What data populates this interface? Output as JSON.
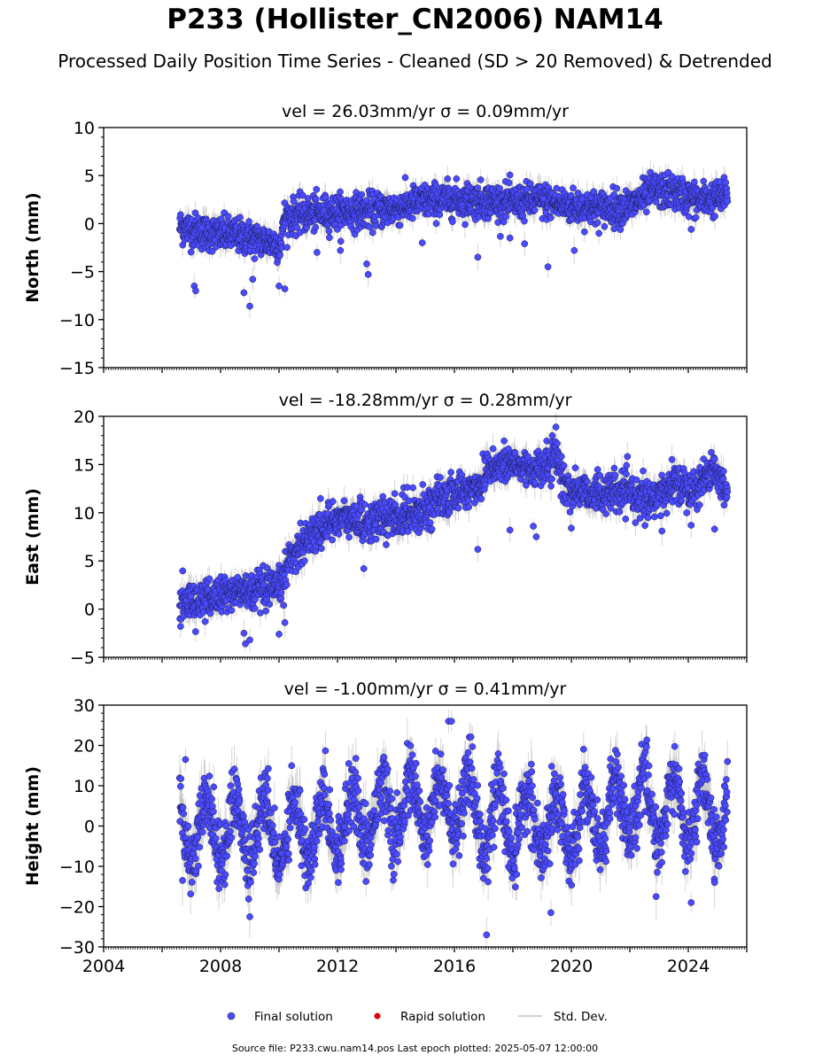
{
  "title": "P233 (Hollister_CN2006) NAM14",
  "subtitle": "Processed Daily Position Time Series - Cleaned (SD > 20 Removed) & Detrended",
  "footer": "Source file: P233.cwu.nam14.pos  Last epoch plotted: 2025-05-07 12:00:00",
  "colors": {
    "final": "#4a4aff",
    "final_edge": "#1a1a4a",
    "rapid": "#e00000",
    "stddev": "#b4b4b4"
  },
  "legend": [
    {
      "label": "Final solution",
      "marker": "dot-blue"
    },
    {
      "label": "Rapid solution",
      "marker": "dot-red"
    },
    {
      "label": "Std. Dev.",
      "marker": "line-gray"
    }
  ],
  "chart_data": [
    {
      "type": "scatter",
      "name": "north",
      "title": "vel = 26.03mm/yr   σ = 0.09mm/yr",
      "ylabel": "North (mm)",
      "xlim": [
        2004,
        2026
      ],
      "ylim": [
        -15,
        10
      ],
      "yticks": [
        10,
        5,
        0,
        -5,
        -10,
        -15
      ],
      "xticks": [],
      "x_range": [
        2006.6,
        2025.35
      ],
      "trend": [
        [
          2006.6,
          -0.3
        ],
        [
          2007.5,
          -1.0
        ],
        [
          2008.5,
          -1.2
        ],
        [
          2009.5,
          -1.8
        ],
        [
          2010.1,
          -2.2
        ],
        [
          2010.15,
          0.6
        ],
        [
          2011,
          1.0
        ],
        [
          2012,
          1.2
        ],
        [
          2013,
          1.3
        ],
        [
          2014,
          1.6
        ],
        [
          2014.9,
          2.3
        ],
        [
          2016,
          2.5
        ],
        [
          2017,
          2.4
        ],
        [
          2018,
          2.2
        ],
        [
          2019,
          2.4
        ],
        [
          2020,
          1.8
        ],
        [
          2021,
          1.6
        ],
        [
          2022,
          1.8
        ],
        [
          2022.8,
          3.4
        ],
        [
          2023.5,
          3.3
        ],
        [
          2024.3,
          2.4
        ],
        [
          2025.35,
          2.8
        ]
      ],
      "scatter_sd": 0.9,
      "outliers": [
        [
          2007.1,
          -6.5
        ],
        [
          2007.15,
          -7.0
        ],
        [
          2008.8,
          -7.2
        ],
        [
          2009.0,
          -8.6
        ],
        [
          2009.1,
          -5.8
        ],
        [
          2010.0,
          -6.5
        ],
        [
          2010.2,
          -6.8
        ],
        [
          2011.3,
          -3.0
        ],
        [
          2012.1,
          -2.8
        ],
        [
          2013.0,
          -4.2
        ],
        [
          2013.05,
          -5.3
        ],
        [
          2014.9,
          -2.0
        ],
        [
          2016.8,
          -3.5
        ],
        [
          2017.9,
          -1.5
        ],
        [
          2018.4,
          -2.1
        ],
        [
          2019.2,
          -4.5
        ],
        [
          2020.1,
          -2.8
        ],
        [
          2020.9,
          0.1
        ],
        [
          2024.1,
          -0.6
        ]
      ]
    },
    {
      "type": "scatter",
      "name": "east",
      "title": "vel = -18.28mm/yr   σ = 0.28mm/yr",
      "ylabel": "East (mm)",
      "xlim": [
        2004,
        2026
      ],
      "ylim": [
        -5,
        20
      ],
      "yticks": [
        20,
        15,
        10,
        5,
        0,
        -5
      ],
      "xticks": [],
      "x_range": [
        2006.6,
        2025.35
      ],
      "trend": [
        [
          2006.6,
          0.5
        ],
        [
          2007.5,
          1.0
        ],
        [
          2008.5,
          1.8
        ],
        [
          2009.5,
          1.8
        ],
        [
          2010.0,
          2.0
        ],
        [
          2010.4,
          5.5
        ],
        [
          2011.0,
          7.5
        ],
        [
          2012.0,
          9.5
        ],
        [
          2013.0,
          9.0
        ],
        [
          2014.0,
          9.5
        ],
        [
          2015.0,
          10.5
        ],
        [
          2016.0,
          12.0
        ],
        [
          2016.9,
          12.8
        ],
        [
          2017.1,
          14.8
        ],
        [
          2018.0,
          15.0
        ],
        [
          2019.0,
          14.5
        ],
        [
          2019.5,
          16.0
        ],
        [
          2019.8,
          12.5
        ],
        [
          2021.0,
          12.0
        ],
        [
          2022.0,
          12.0
        ],
        [
          2022.8,
          11.0
        ],
        [
          2023.5,
          13.2
        ],
        [
          2024.3,
          12.5
        ],
        [
          2024.8,
          14.8
        ],
        [
          2025.35,
          12.0
        ]
      ],
      "scatter_sd": 1.0,
      "outliers": [
        [
          2008.8,
          -2.5
        ],
        [
          2008.85,
          -3.6
        ],
        [
          2009.0,
          -3.2
        ],
        [
          2010.0,
          -2.6
        ],
        [
          2010.2,
          -1.4
        ],
        [
          2012.9,
          4.2
        ],
        [
          2016.8,
          6.2
        ],
        [
          2017.9,
          8.2
        ],
        [
          2018.7,
          8.6
        ],
        [
          2018.8,
          7.5
        ],
        [
          2020.0,
          8.4
        ],
        [
          2023.1,
          8.1
        ],
        [
          2024.1,
          8.7
        ],
        [
          2024.9,
          8.3
        ]
      ]
    },
    {
      "type": "scatter",
      "name": "height",
      "title": "vel = -1.00mm/yr   σ = 0.41mm/yr",
      "ylabel": "Height (mm)",
      "xlim": [
        2004,
        2026
      ],
      "ylim": [
        -30,
        30
      ],
      "yticks": [
        30,
        20,
        10,
        0,
        -10,
        -20,
        -30
      ],
      "xticks": [
        2004,
        2008,
        2012,
        2016,
        2020,
        2024
      ],
      "x_range": [
        2006.6,
        2025.35
      ],
      "trend": [
        [
          2006.6,
          0
        ],
        [
          2010,
          -2
        ],
        [
          2014,
          4
        ],
        [
          2016,
          5
        ],
        [
          2018,
          0
        ],
        [
          2020,
          0
        ],
        [
          2022,
          5
        ],
        [
          2025.35,
          3
        ]
      ],
      "seasonal_amp": 8.0,
      "scatter_sd": 4.0,
      "outliers": [
        [
          2006.7,
          -13.5
        ],
        [
          2006.8,
          16.5
        ],
        [
          2009.0,
          -22.5
        ],
        [
          2015.8,
          26.0
        ],
        [
          2015.9,
          26.0
        ],
        [
          2017.1,
          -27.0
        ],
        [
          2019.3,
          -21.5
        ],
        [
          2022.9,
          -17.5
        ],
        [
          2024.1,
          -19.0
        ],
        [
          2024.9,
          -14.0
        ]
      ]
    }
  ]
}
